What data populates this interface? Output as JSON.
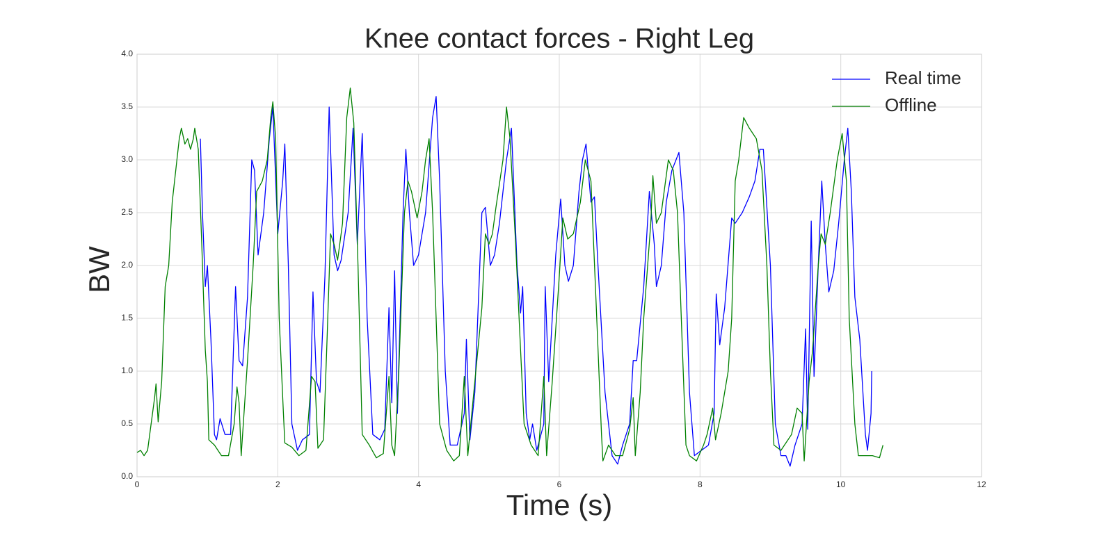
{
  "chart_data": {
    "type": "line",
    "title": "Knee contact forces - Right Leg",
    "x_label": "Time (s)",
    "y_label": "BW",
    "xlim": [
      0,
      12
    ],
    "xticks": [
      0,
      2,
      4,
      6,
      8,
      10,
      12
    ],
    "ylim": [
      0,
      4
    ],
    "yticks": [
      {
        "value": 0,
        "label": "0.0"
      },
      {
        "value": 0.5,
        "label": "0.5"
      },
      {
        "value": 1,
        "label": "1.0"
      },
      {
        "value": 1.5,
        "label": "1.5"
      },
      {
        "value": 2,
        "label": "2.0"
      },
      {
        "value": 2.5,
        "label": "2.5"
      },
      {
        "value": 3,
        "label": "3.0"
      },
      {
        "value": 3.5,
        "label": "3.5"
      },
      {
        "value": 4,
        "label": "4.0"
      }
    ],
    "grid": true,
    "legend": "upper right",
    "series": [
      {
        "name": "Real time",
        "color": "#0000ff",
        "x": [
          0.9,
          0.93,
          0.97,
          1.0,
          1.05,
          1.1,
          1.13,
          1.18,
          1.25,
          1.33,
          1.4,
          1.45,
          1.5,
          1.57,
          1.63,
          1.67,
          1.72,
          1.8,
          1.88,
          1.93,
          2.0,
          2.07,
          2.1,
          2.15,
          2.2,
          2.28,
          2.35,
          2.45,
          2.5,
          2.55,
          2.6,
          2.67,
          2.73,
          2.8,
          2.85,
          2.9,
          3.0,
          3.07,
          3.13,
          3.2,
          3.27,
          3.35,
          3.45,
          3.52,
          3.58,
          3.62,
          3.66,
          3.7,
          3.78,
          3.82,
          3.87,
          3.93,
          4.0,
          4.1,
          4.2,
          4.25,
          4.3,
          4.38,
          4.45,
          4.55,
          4.65,
          4.68,
          4.73,
          4.8,
          4.9,
          4.95,
          5.02,
          5.08,
          5.15,
          5.25,
          5.32,
          5.4,
          5.45,
          5.48,
          5.53,
          5.58,
          5.62,
          5.68,
          5.78,
          5.8,
          5.85,
          5.9,
          5.95,
          6.02,
          6.08,
          6.13,
          6.2,
          6.28,
          6.33,
          6.38,
          6.45,
          6.5,
          6.55,
          6.65,
          6.75,
          6.83,
          6.9,
          7.0,
          7.05,
          7.1,
          7.2,
          7.28,
          7.35,
          7.38,
          7.45,
          7.52,
          7.6,
          7.7,
          7.77,
          7.85,
          7.92,
          8.02,
          8.12,
          8.2,
          8.23,
          8.28,
          8.35,
          8.45,
          8.5,
          8.6,
          8.7,
          8.78,
          8.85,
          8.9,
          9.0,
          9.07,
          9.15,
          9.22,
          9.28,
          9.35,
          9.45,
          9.5,
          9.53,
          9.58,
          9.62,
          9.68,
          9.73,
          9.78,
          9.83,
          9.9,
          9.97,
          10.05,
          10.1,
          10.15,
          10.2,
          10.27,
          10.35,
          10.38,
          10.43,
          10.44
        ],
        "values": [
          3.2,
          2.5,
          1.8,
          2.0,
          1.3,
          0.4,
          0.35,
          0.55,
          0.4,
          0.4,
          1.8,
          1.1,
          1.05,
          1.7,
          3.0,
          2.9,
          2.1,
          2.5,
          3.2,
          3.5,
          2.3,
          2.8,
          3.15,
          2.0,
          0.5,
          0.25,
          0.35,
          0.4,
          1.75,
          0.9,
          0.8,
          1.9,
          3.5,
          2.1,
          1.95,
          2.05,
          2.5,
          3.3,
          2.2,
          3.25,
          1.5,
          0.4,
          0.35,
          0.45,
          1.6,
          0.7,
          1.95,
          0.6,
          2.5,
          3.1,
          2.5,
          2.0,
          2.1,
          2.5,
          3.4,
          3.6,
          2.8,
          1.0,
          0.3,
          0.3,
          0.6,
          1.3,
          0.35,
          0.8,
          2.5,
          2.55,
          2.0,
          2.1,
          2.4,
          3.0,
          3.3,
          2.0,
          1.55,
          1.8,
          0.6,
          0.35,
          0.5,
          0.25,
          0.5,
          1.8,
          0.9,
          1.5,
          2.1,
          2.63,
          2.0,
          1.85,
          2.0,
          2.7,
          3.0,
          3.15,
          2.6,
          2.65,
          2.0,
          0.8,
          0.2,
          0.12,
          0.3,
          0.5,
          1.1,
          1.1,
          1.8,
          2.7,
          2.2,
          1.8,
          2.0,
          2.6,
          2.9,
          3.07,
          2.5,
          0.8,
          0.2,
          0.25,
          0.3,
          0.6,
          1.73,
          1.25,
          1.6,
          2.45,
          2.4,
          2.5,
          2.65,
          2.8,
          3.1,
          3.1,
          2.0,
          0.5,
          0.2,
          0.2,
          0.1,
          0.3,
          0.5,
          1.4,
          0.45,
          2.42,
          0.95,
          2.0,
          2.8,
          2.2,
          1.75,
          1.95,
          2.4,
          3.0,
          3.3,
          2.7,
          1.7,
          1.3,
          0.4,
          0.25,
          0.6,
          1.0
        ]
      },
      {
        "name": "Offline",
        "color": "#008000",
        "x": [
          0,
          0.05,
          0.1,
          0.15,
          0.2,
          0.25,
          0.27,
          0.3,
          0.35,
          0.4,
          0.45,
          0.5,
          0.55,
          0.6,
          0.63,
          0.68,
          0.72,
          0.76,
          0.8,
          0.82,
          0.87,
          0.92,
          0.97,
          1.0,
          1.02,
          1.1,
          1.2,
          1.3,
          1.38,
          1.42,
          1.45,
          1.48,
          1.52,
          1.57,
          1.65,
          1.7,
          1.78,
          1.85,
          1.9,
          1.93,
          1.97,
          2.02,
          2.08,
          2.1,
          2.2,
          2.3,
          2.4,
          2.48,
          2.53,
          2.57,
          2.65,
          2.7,
          2.75,
          2.8,
          2.85,
          2.92,
          2.98,
          3.03,
          3.08,
          3.14,
          3.2,
          3.3,
          3.4,
          3.5,
          3.58,
          3.62,
          3.66,
          3.72,
          3.8,
          3.85,
          3.9,
          3.98,
          4.05,
          4.1,
          4.15,
          4.2,
          4.25,
          4.3,
          4.4,
          4.5,
          4.58,
          4.65,
          4.7,
          4.8,
          4.9,
          4.95,
          5.0,
          5.05,
          5.1,
          5.2,
          5.25,
          5.3,
          5.38,
          5.45,
          5.5,
          5.6,
          5.7,
          5.78,
          5.82,
          5.9,
          6.0,
          6.05,
          6.12,
          6.2,
          6.3,
          6.37,
          6.45,
          6.52,
          6.6,
          6.62,
          6.7,
          6.8,
          6.9,
          7.0,
          7.05,
          7.08,
          7.15,
          7.2,
          7.3,
          7.33,
          7.38,
          7.45,
          7.55,
          7.62,
          7.68,
          7.75,
          7.8,
          7.85,
          7.95,
          8.05,
          8.1,
          8.18,
          8.22,
          8.3,
          8.4,
          8.45,
          8.5,
          8.55,
          8.62,
          8.7,
          8.8,
          8.88,
          8.95,
          9.0,
          9.05,
          9.15,
          9.2,
          9.3,
          9.38,
          9.45,
          9.48,
          9.55,
          9.6,
          9.68,
          9.72,
          9.78,
          9.85,
          9.95,
          10.02,
          10.08,
          10.12,
          10.2,
          10.25,
          10.35,
          10.45,
          10.55,
          10.6
        ],
        "values": [
          0.23,
          0.25,
          0.2,
          0.25,
          0.5,
          0.75,
          0.88,
          0.52,
          0.9,
          1.8,
          2.0,
          2.6,
          2.9,
          3.2,
          3.3,
          3.15,
          3.2,
          3.1,
          3.2,
          3.3,
          3.1,
          2.2,
          1.2,
          0.9,
          0.35,
          0.3,
          0.2,
          0.2,
          0.5,
          0.85,
          0.7,
          0.2,
          0.6,
          1.1,
          2.0,
          2.7,
          2.8,
          3.0,
          3.4,
          3.55,
          3.2,
          1.5,
          0.6,
          0.32,
          0.28,
          0.2,
          0.25,
          0.95,
          0.9,
          0.27,
          0.35,
          1.3,
          2.3,
          2.2,
          2.05,
          2.4,
          3.4,
          3.68,
          3.35,
          2.0,
          0.4,
          0.3,
          0.18,
          0.22,
          0.95,
          0.3,
          0.2,
          1.0,
          2.5,
          2.8,
          2.7,
          2.45,
          2.7,
          3.0,
          3.2,
          2.5,
          1.5,
          0.5,
          0.25,
          0.15,
          0.2,
          0.95,
          0.2,
          0.9,
          1.6,
          2.3,
          2.2,
          2.3,
          2.55,
          3.0,
          3.5,
          3.2,
          2.2,
          1.2,
          0.5,
          0.3,
          0.2,
          0.95,
          0.2,
          0.9,
          1.9,
          2.45,
          2.25,
          2.3,
          2.6,
          3.0,
          2.8,
          1.7,
          0.4,
          0.15,
          0.3,
          0.2,
          0.2,
          0.45,
          0.75,
          0.2,
          0.8,
          1.5,
          2.4,
          2.85,
          2.4,
          2.5,
          3.0,
          2.9,
          2.5,
          1.2,
          0.3,
          0.2,
          0.15,
          0.3,
          0.4,
          0.65,
          0.35,
          0.6,
          1.0,
          1.5,
          2.8,
          3.0,
          3.4,
          3.3,
          3.2,
          2.9,
          2.0,
          1.0,
          0.3,
          0.25,
          0.3,
          0.4,
          0.65,
          0.6,
          0.15,
          0.9,
          1.2,
          2.0,
          2.3,
          2.2,
          2.5,
          3.0,
          3.25,
          2.8,
          1.5,
          0.5,
          0.2,
          0.2,
          0.2,
          0.18,
          0.3
        ]
      }
    ]
  }
}
